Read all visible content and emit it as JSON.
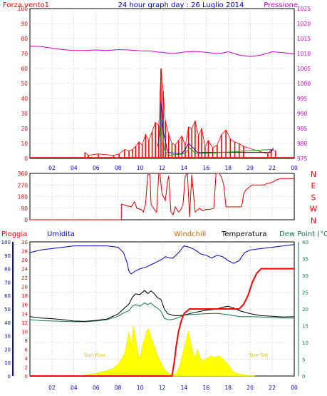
{
  "header": {
    "left_label": "Forza vento1",
    "title": "24 hour graph day : 26 Luglio 2014",
    "right_label": "Pressione"
  },
  "colors": {
    "wind": "#ff0000",
    "gust_blue": "#0000cc",
    "gust_green": "#00aa00",
    "pressure": "#cc00cc",
    "direction": "#dd0000",
    "rain": "#ff0000",
    "humidity": "#0000cc",
    "temperature": "#000000",
    "dewpoint": "#117744",
    "windchill": "#cc6600",
    "solar": "#ffff00",
    "grid": "#9aa0a8",
    "text_left": "#ff0000",
    "text_blue": "#0000cc",
    "text_right": "#cc00cc"
  },
  "chart_data": [
    {
      "type": "line",
      "name": "wind-pressure",
      "ylim": [
        0,
        100
      ],
      "y2lim": [
        975,
        1025
      ],
      "yticks": [
        "0",
        "10",
        "20",
        "30",
        "40",
        "50",
        "60",
        "70",
        "80",
        "90",
        "100"
      ],
      "y2ticks": [
        "975",
        "980",
        "985",
        "990",
        "995",
        "1000",
        "1005",
        "1010",
        "1015",
        "1020",
        "1025"
      ],
      "xticks": [
        "02",
        "04",
        "06",
        "08",
        "10",
        "12",
        "14",
        "16",
        "18",
        "20",
        "22",
        "00"
      ],
      "pressure": {
        "x": [
          0,
          1,
          2,
          3,
          4,
          5,
          6,
          7,
          8,
          9,
          10,
          11,
          11.5,
          12,
          12.5,
          13,
          14,
          15,
          16,
          17,
          17.5,
          18,
          19,
          20,
          21,
          22,
          23,
          24
        ],
        "y": [
          1012.5,
          1012.3,
          1011.8,
          1011.3,
          1011.0,
          1011.0,
          1011.2,
          1011.0,
          1011.3,
          1011.2,
          1010.9,
          1010.8,
          1010.5,
          1010.4,
          1010.2,
          1010.0,
          1010.5,
          1010.7,
          1010.4,
          1010.0,
          1010.2,
          1010.6,
          1009.5,
          1009.0,
          1009.5,
          1010.6,
          1010.3,
          1009.8
        ]
      },
      "wind": {
        "x": [
          5.0,
          5.3,
          6.2,
          7.6,
          8.1,
          8.6,
          9.0,
          9.3,
          9.6,
          9.9,
          10.2,
          10.5,
          10.8,
          11.1,
          11.4,
          11.7,
          11.9,
          12.1,
          12.3,
          12.6,
          12.9,
          13.2,
          13.5,
          13.8,
          14.1,
          14.4,
          14.7,
          15.0,
          15.3,
          15.6,
          15.9,
          16.2,
          16.6,
          17.0,
          17.4,
          17.8,
          18.2,
          18.6,
          19.0,
          19.4,
          21.6,
          21.9,
          22.3
        ],
        "y": [
          4,
          2,
          3,
          2,
          3,
          6,
          5,
          6,
          8,
          11,
          9,
          16,
          12,
          18,
          24,
          22,
          60,
          45,
          25,
          16,
          10,
          9,
          12,
          15,
          8,
          21,
          20,
          25,
          15,
          20,
          8,
          12,
          7,
          9,
          16,
          19,
          13,
          11,
          10,
          8,
          3,
          6,
          5
        ]
      },
      "gust_blue": {
        "x": [
          11.6,
          11.8,
          11.9,
          12.0,
          12.1,
          12.3,
          12.5,
          13.8,
          14.1,
          14.4,
          14.7,
          15.2,
          21.9,
          22.1
        ],
        "y": [
          8,
          16,
          38,
          30,
          18,
          12,
          4,
          3,
          6,
          10,
          8,
          4,
          4,
          7
        ]
      },
      "gust_green": {
        "x": [
          11.7,
          11.8,
          11.9,
          12.0,
          12.1,
          12.2,
          12.5,
          13.9,
          14.2,
          14.5,
          14.8,
          15.1,
          22.0
        ],
        "y": [
          10,
          18,
          26,
          22,
          12,
          6,
          2,
          3,
          4,
          7,
          5,
          3,
          6
        ]
      }
    },
    {
      "type": "line",
      "name": "wind-direction",
      "ylim": [
        0,
        360
      ],
      "yticks": [
        "0",
        "90",
        "180",
        "270",
        "360"
      ],
      "compass": [
        "N",
        "W",
        "S",
        "E",
        "N"
      ],
      "x": [
        0,
        8.3,
        8.3,
        9.2,
        9.5,
        9.7,
        10.1,
        10.3,
        10.5,
        10.7,
        10.9,
        11.0,
        11.3,
        11.5,
        11.7,
        11.8,
        12.0,
        12.3,
        12.5,
        12.6,
        12.8,
        13.0,
        13.2,
        13.5,
        13.7,
        13.9,
        14.1,
        14.3,
        14.5,
        14.7,
        15.0,
        15.4,
        15.7,
        16.0,
        16.3,
        16.7,
        16.9,
        17.2,
        17.4,
        17.6,
        17.8,
        18.2,
        18.3,
        19.2,
        19.3,
        19.4,
        19.6,
        20.0,
        20.2,
        21.3,
        21.5,
        22.0,
        22.4,
        22.8,
        24
      ],
      "y": [
        0,
        0,
        120,
        100,
        140,
        90,
        80,
        60,
        120,
        350,
        350,
        120,
        80,
        60,
        360,
        360,
        200,
        150,
        300,
        340,
        60,
        40,
        100,
        60,
        80,
        120,
        340,
        360,
        20,
        350,
        60,
        90,
        70,
        80,
        80,
        90,
        360,
        360,
        330,
        270,
        100,
        100,
        100,
        100,
        130,
        200,
        230,
        260,
        270,
        270,
        280,
        290,
        310,
        320,
        320
      ]
    },
    {
      "type": "line",
      "name": "temperature-humidity-rain",
      "left_title": "Pioggia",
      "humidity_title": "Umidita",
      "windchill_title": "Windchill",
      "temperature_title": "Temperatura",
      "dewpoint_title": "Dew Point (°C",
      "rain_ylim": [
        0,
        30
      ],
      "humidity_ylim": [
        0,
        100
      ],
      "temp_ylim": [
        0,
        40
      ],
      "rain_ticks": [
        "0",
        "2",
        "4",
        "6",
        "8",
        "10",
        "12",
        "14",
        "16",
        "18",
        "20",
        "22",
        "24",
        "26",
        "28",
        "30"
      ],
      "humidity_ticks": [
        "0",
        "10",
        "20",
        "30",
        "40",
        "50",
        "60",
        "70",
        "80",
        "90",
        "100"
      ],
      "temp_ticks": [
        "0",
        "5",
        "10",
        "15",
        "20",
        "25",
        "30",
        "35",
        "40"
      ],
      "xticks": [
        "02",
        "04",
        "06",
        "08",
        "10",
        "12",
        "14",
        "16",
        "18",
        "20",
        "22",
        "00"
      ],
      "sun_rise": "Sun Rise",
      "sun_set": "Sun Set",
      "rain": {
        "x": [
          0,
          12.9,
          13.1,
          13.3,
          13.5,
          13.7,
          14.0,
          14.5,
          15.0,
          16.0,
          17.0,
          18.0,
          19.0,
          19.4,
          19.8,
          20.2,
          20.6,
          21.0,
          21.4,
          24
        ],
        "y": [
          0,
          0,
          3,
          7,
          10,
          12,
          14,
          15,
          15,
          15,
          15,
          15,
          15,
          16,
          18,
          21,
          23,
          24,
          24,
          24
        ]
      },
      "humidity": {
        "x": [
          0,
          1,
          2,
          3,
          4,
          5,
          6,
          7,
          8,
          8.5,
          8.8,
          9.0,
          9.2,
          9.5,
          10.0,
          10.5,
          11.0,
          11.5,
          12.0,
          12.3,
          12.7,
          13.0,
          13.5,
          14.0,
          14.5,
          15.0,
          15.5,
          16.0,
          16.5,
          17.0,
          17.5,
          18.0,
          18.5,
          19.0,
          19.5,
          20.0,
          21.0,
          22.0,
          23.0,
          24
        ],
        "y": [
          92,
          94,
          95,
          96,
          97,
          97,
          97,
          97,
          96,
          92,
          85,
          78,
          76,
          78,
          80,
          81,
          83,
          85,
          87,
          89,
          88,
          88,
          92,
          97,
          96,
          94,
          91,
          90,
          88,
          90,
          89,
          86,
          84,
          86,
          92,
          94,
          95,
          96,
          97,
          98
        ]
      },
      "temperature": {
        "x": [
          0,
          1,
          2,
          3,
          4,
          5,
          6,
          7,
          8,
          8.5,
          9.0,
          9.3,
          9.6,
          10.0,
          10.4,
          10.7,
          11.0,
          11.3,
          11.6,
          11.9,
          12.2,
          12.5,
          12.8,
          13.1,
          13.6,
          14.0,
          15.0,
          16.0,
          17.0,
          17.5,
          18.0,
          18.5,
          19.0,
          20.0,
          21.0,
          22.0,
          23.0,
          24
        ],
        "y": [
          17.7,
          17.3,
          17.1,
          16.8,
          16.4,
          16.3,
          16.6,
          17.0,
          18.5,
          20.0,
          21.5,
          23.5,
          24.5,
          24.3,
          25.5,
          24.6,
          25.4,
          24.5,
          23.3,
          22.8,
          20.0,
          18.6,
          18.3,
          18.0,
          18.0,
          18.2,
          19.0,
          19.6,
          20.0,
          20.5,
          20.8,
          20.3,
          19.5,
          18.6,
          18.0,
          17.8,
          17.6,
          17.7
        ]
      },
      "dewpoint": {
        "x": [
          0,
          1,
          2,
          3,
          4,
          5,
          6,
          7,
          8,
          8.5,
          9.0,
          9.3,
          9.6,
          10.0,
          10.4,
          10.7,
          11.0,
          11.3,
          11.6,
          11.9,
          12.2,
          12.5,
          12.8,
          13.1,
          13.6,
          14.0,
          15.0,
          16.0,
          17.0,
          17.5,
          18.0,
          18.5,
          19.0,
          20.0,
          21.0,
          22.0,
          23.0,
          24
        ],
        "y": [
          16.8,
          16.5,
          16.4,
          16.3,
          16.2,
          16.2,
          16.4,
          16.8,
          17.8,
          18.8,
          19.5,
          20.8,
          21.3,
          20.8,
          21.8,
          21.3,
          21.8,
          20.8,
          20.2,
          19.3,
          17.3,
          16.8,
          16.8,
          17.0,
          17.6,
          18.2,
          18.4,
          18.6,
          18.7,
          18.5,
          18.3,
          18.0,
          17.7,
          17.7,
          17.6,
          17.4,
          17.3,
          17.3
        ]
      },
      "solar": {
        "x": [
          4.6,
          5.0,
          5.5,
          6.0,
          6.5,
          7.0,
          7.5,
          8.0,
          8.3,
          8.6,
          8.8,
          9.0,
          9.2,
          9.4,
          9.6,
          9.8,
          10.0,
          10.2,
          10.4,
          10.6,
          10.8,
          11.0,
          11.3,
          11.6,
          11.9,
          12.2,
          12.5,
          12.8,
          13.0,
          13.3,
          13.6,
          13.9,
          14.2,
          14.4,
          14.6,
          14.8,
          15.0,
          15.2,
          15.4,
          15.6,
          15.9,
          16.2,
          16.5,
          16.8,
          17.1,
          17.4,
          17.7,
          18.0,
          18.3,
          18.6,
          19.0,
          19.4,
          19.8,
          20.2,
          20.4
        ],
        "y": [
          0.1,
          0.3,
          0.6,
          0.8,
          1.2,
          1.6,
          2.2,
          3.5,
          5.0,
          6.5,
          10.0,
          13.0,
          9.0,
          15.0,
          11.0,
          7.0,
          5.0,
          9.0,
          11.0,
          13.5,
          14.0,
          11.5,
          9.0,
          6.0,
          4.0,
          2.0,
          1.0,
          0.5,
          0.4,
          0.8,
          3.0,
          7.0,
          11.0,
          13.5,
          10.0,
          7.0,
          5.5,
          8.0,
          6.0,
          4.5,
          5.0,
          5.5,
          6.0,
          5.5,
          6.0,
          5.5,
          4.5,
          3.5,
          2.0,
          1.0,
          0.6,
          0.4,
          0.2,
          0.1,
          0.05
        ]
      }
    }
  ]
}
